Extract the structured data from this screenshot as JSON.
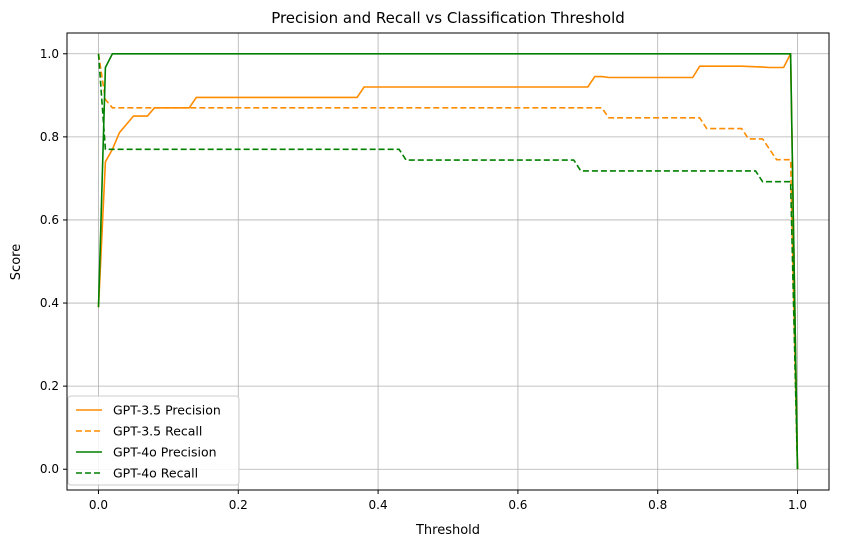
{
  "chart_data": {
    "type": "line",
    "title": "Precision and Recall vs Classification Threshold",
    "xlabel": "Threshold",
    "ylabel": "Score",
    "xlim": [
      -0.045,
      1.045
    ],
    "ylim": [
      -0.05,
      1.05
    ],
    "xticks": [
      0.0,
      0.2,
      0.4,
      0.6,
      0.8,
      1.0
    ],
    "xtick_labels": [
      "0.0",
      "0.2",
      "0.4",
      "0.6",
      "0.8",
      "1.0"
    ],
    "yticks": [
      0.0,
      0.2,
      0.4,
      0.6,
      0.8,
      1.0
    ],
    "ytick_labels": [
      "0.0",
      "0.2",
      "0.4",
      "0.6",
      "0.8",
      "1.0"
    ],
    "grid": true,
    "legend_position": "lower-left",
    "series": [
      {
        "name": "GPT-3.5 Precision",
        "color": "#ff8c00",
        "dash": "solid",
        "x": [
          0.0,
          0.01,
          0.02,
          0.03,
          0.04,
          0.05,
          0.06,
          0.07,
          0.08,
          0.13,
          0.14,
          0.37,
          0.38,
          0.7,
          0.71,
          0.72,
          0.73,
          0.85,
          0.86,
          0.92,
          0.95,
          0.96,
          0.98,
          0.99,
          1.0
        ],
        "y": [
          0.39,
          0.74,
          0.77,
          0.81,
          0.83,
          0.85,
          0.85,
          0.85,
          0.87,
          0.87,
          0.895,
          0.895,
          0.92,
          0.92,
          0.945,
          0.945,
          0.943,
          0.943,
          0.97,
          0.97,
          0.968,
          0.967,
          0.967,
          1.0,
          0.0
        ]
      },
      {
        "name": "GPT-3.5 Recall",
        "color": "#ff8c00",
        "dash": "dashed",
        "x": [
          0.0,
          0.01,
          0.02,
          0.72,
          0.73,
          0.86,
          0.87,
          0.92,
          0.93,
          0.95,
          0.96,
          0.97,
          0.99,
          1.0
        ],
        "y": [
          1.0,
          0.89,
          0.87,
          0.87,
          0.846,
          0.846,
          0.82,
          0.82,
          0.795,
          0.795,
          0.77,
          0.745,
          0.745,
          0.0
        ]
      },
      {
        "name": "GPT-4o Precision",
        "color": "#008000",
        "dash": "solid",
        "x": [
          0.0,
          0.01,
          0.02,
          0.99,
          1.0
        ],
        "y": [
          0.39,
          0.967,
          1.0,
          1.0,
          0.0
        ]
      },
      {
        "name": "GPT-4o Recall",
        "color": "#008000",
        "dash": "dashed",
        "x": [
          0.0,
          0.01,
          0.43,
          0.44,
          0.68,
          0.69,
          0.94,
          0.95,
          0.99,
          1.0
        ],
        "y": [
          1.0,
          0.77,
          0.77,
          0.744,
          0.744,
          0.718,
          0.718,
          0.692,
          0.692,
          0.0
        ]
      }
    ]
  }
}
